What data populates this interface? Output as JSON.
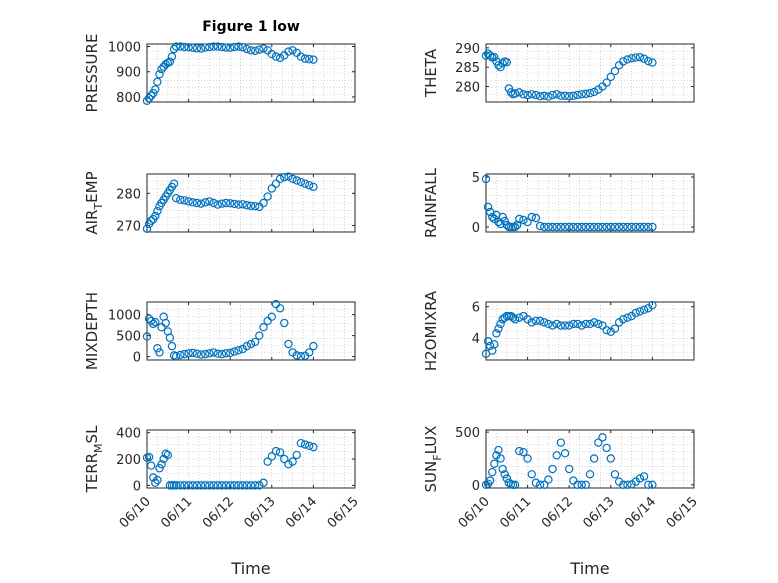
{
  "figure": {
    "title": "Figure 1 low"
  },
  "chart_data": [
    {
      "type": "scatter",
      "id": "pressure",
      "ylabel": "PRESSURE",
      "xlabel": "",
      "title": "Figure 1 low",
      "ylim": [
        780,
        1010
      ],
      "yticks": [
        "800",
        "900",
        "1000"
      ],
      "ytick_values": [
        800,
        900,
        1000
      ],
      "xlim": [
        0,
        5
      ],
      "xtick_values": [
        0,
        1,
        2,
        3,
        4,
        5
      ],
      "grid": true,
      "color": "#0072BD",
      "x": [
        0.0,
        0.05,
        0.1,
        0.15,
        0.2,
        0.25,
        0.3,
        0.35,
        0.4,
        0.45,
        0.5,
        0.55,
        0.6,
        0.65,
        0.7,
        0.8,
        0.9,
        1.0,
        1.1,
        1.2,
        1.3,
        1.4,
        1.5,
        1.6,
        1.7,
        1.8,
        1.9,
        2.0,
        2.1,
        2.2,
        2.3,
        2.4,
        2.5,
        2.6,
        2.7,
        2.8,
        2.9,
        3.0,
        3.1,
        3.2,
        3.3,
        3.4,
        3.5,
        3.6,
        3.7,
        3.8,
        3.9,
        4.0
      ],
      "y": [
        785,
        795,
        805,
        815,
        830,
        860,
        890,
        910,
        920,
        930,
        935,
        940,
        960,
        990,
        1000,
        1000,
        998,
        997,
        995,
        993,
        992,
        996,
        998,
        1000,
        1000,
        998,
        996,
        995,
        998,
        1000,
        997,
        990,
        985,
        983,
        988,
        992,
        985,
        970,
        960,
        955,
        965,
        980,
        985,
        975,
        960,
        952,
        950,
        948
      ]
    },
    {
      "type": "scatter",
      "id": "theta",
      "ylabel": "THETA",
      "xlabel": "",
      "ylim": [
        276,
        291
      ],
      "yticks": [
        "280",
        "285",
        "290"
      ],
      "ytick_values": [
        280,
        285,
        290
      ],
      "xlim": [
        0,
        5
      ],
      "xtick_values": [
        0,
        1,
        2,
        3,
        4,
        5
      ],
      "grid": true,
      "color": "#0072BD",
      "x": [
        0.0,
        0.05,
        0.1,
        0.15,
        0.2,
        0.25,
        0.3,
        0.35,
        0.4,
        0.45,
        0.5,
        0.55,
        0.6,
        0.65,
        0.7,
        0.8,
        0.9,
        1.0,
        1.1,
        1.2,
        1.3,
        1.4,
        1.5,
        1.6,
        1.7,
        1.8,
        1.9,
        2.0,
        2.1,
        2.2,
        2.3,
        2.4,
        2.5,
        2.6,
        2.7,
        2.8,
        2.9,
        3.0,
        3.1,
        3.2,
        3.3,
        3.4,
        3.5,
        3.6,
        3.7,
        3.8,
        3.9,
        4.0
      ],
      "y": [
        288,
        288.5,
        288,
        287.5,
        287.6,
        286.5,
        285.5,
        285,
        286,
        286.5,
        286.3,
        279.5,
        278.5,
        278,
        278.2,
        278.5,
        278,
        277.8,
        278,
        277.8,
        277.5,
        277.6,
        277.4,
        277.8,
        278,
        277.6,
        277.6,
        277.5,
        277.6,
        277.8,
        278,
        278.1,
        278.3,
        278.6,
        279.2,
        280,
        281,
        282.5,
        284,
        285.5,
        286.5,
        287,
        287.3,
        287.5,
        287.6,
        287.2,
        286.6,
        286.2
      ]
    },
    {
      "type": "scatter",
      "id": "air_temp",
      "ylabel": "AIR_TEMP",
      "ylabel_main": "AIR",
      "ylabel_sub": "T",
      "ylabel_rest": "EMP",
      "xlabel": "",
      "ylim": [
        268,
        286
      ],
      "yticks": [
        "270",
        "280"
      ],
      "ytick_values": [
        270,
        280
      ],
      "xlim": [
        0,
        5
      ],
      "xtick_values": [
        0,
        1,
        2,
        3,
        4,
        5
      ],
      "grid": true,
      "color": "#0072BD",
      "x": [
        0.0,
        0.05,
        0.1,
        0.15,
        0.2,
        0.25,
        0.3,
        0.35,
        0.4,
        0.45,
        0.5,
        0.55,
        0.6,
        0.65,
        0.7,
        0.8,
        0.9,
        1.0,
        1.1,
        1.2,
        1.3,
        1.4,
        1.5,
        1.6,
        1.7,
        1.8,
        1.9,
        2.0,
        2.1,
        2.2,
        2.3,
        2.4,
        2.5,
        2.6,
        2.7,
        2.8,
        2.9,
        3.0,
        3.1,
        3.2,
        3.3,
        3.4,
        3.5,
        3.6,
        3.7,
        3.8,
        3.9,
        4.0
      ],
      "y": [
        269,
        270.5,
        271.5,
        272,
        273,
        274.5,
        276,
        277,
        278,
        279,
        280,
        281,
        282,
        283,
        278.5,
        278,
        277.8,
        277.5,
        277.2,
        277,
        276.8,
        277.2,
        277.5,
        277,
        276.5,
        276.8,
        277,
        276.9,
        276.7,
        276.5,
        276.6,
        276.3,
        276.1,
        276,
        275.8,
        277,
        279,
        281.5,
        283,
        284.5,
        285,
        285.2,
        284.5,
        284,
        283.5,
        283,
        282.5,
        282
      ]
    },
    {
      "type": "scatter",
      "id": "rainfall",
      "ylabel": "RAINFALL",
      "xlabel": "",
      "ylim": [
        -0.5,
        5.3
      ],
      "yticks": [
        "0",
        "5"
      ],
      "ytick_values": [
        0,
        5
      ],
      "xlim": [
        0,
        5
      ],
      "xtick_values": [
        0,
        1,
        2,
        3,
        4,
        5
      ],
      "grid": true,
      "color": "#0072BD",
      "x": [
        0.0,
        0.05,
        0.1,
        0.15,
        0.2,
        0.25,
        0.3,
        0.35,
        0.4,
        0.45,
        0.5,
        0.55,
        0.6,
        0.65,
        0.7,
        0.75,
        0.8,
        0.9,
        1.0,
        1.1,
        1.2,
        1.3,
        1.4,
        1.5,
        1.6,
        1.7,
        1.8,
        1.9,
        2.0,
        2.1,
        2.2,
        2.3,
        2.4,
        2.5,
        2.6,
        2.7,
        2.8,
        2.9,
        3.0,
        3.1,
        3.2,
        3.3,
        3.4,
        3.5,
        3.6,
        3.7,
        3.8,
        3.9,
        4.0
      ],
      "y": [
        4.8,
        2,
        1.5,
        1,
        0.8,
        1.2,
        0.5,
        0.3,
        1,
        0.6,
        0.2,
        0,
        0,
        0,
        0,
        0.2,
        0.8,
        0.7,
        0.5,
        1,
        0.9,
        0.1,
        0,
        0,
        0,
        0,
        0,
        0,
        0,
        0,
        0,
        0,
        0,
        0,
        0,
        0,
        0,
        0,
        0,
        0,
        0,
        0,
        0,
        0,
        0,
        0,
        0,
        0,
        0
      ]
    },
    {
      "type": "scatter",
      "id": "mixdepth",
      "ylabel": "MIXDEPTH",
      "xlabel": "",
      "ylim": [
        -80,
        1300
      ],
      "yticks": [
        "0",
        "500",
        "1000"
      ],
      "ytick_values": [
        0,
        500,
        1000
      ],
      "xlim": [
        0,
        5
      ],
      "xtick_values": [
        0,
        1,
        2,
        3,
        4,
        5
      ],
      "grid": true,
      "color": "#0072BD",
      "x": [
        0.0,
        0.05,
        0.1,
        0.15,
        0.2,
        0.25,
        0.3,
        0.35,
        0.4,
        0.45,
        0.5,
        0.55,
        0.6,
        0.65,
        0.7,
        0.8,
        0.9,
        1.0,
        1.1,
        1.2,
        1.3,
        1.4,
        1.5,
        1.6,
        1.7,
        1.8,
        1.9,
        2.0,
        2.1,
        2.2,
        2.3,
        2.4,
        2.5,
        2.6,
        2.7,
        2.8,
        2.9,
        3.0,
        3.1,
        3.2,
        3.3,
        3.4,
        3.5,
        3.6,
        3.7,
        3.8,
        3.9,
        4.0
      ],
      "y": [
        480,
        900,
        850,
        780,
        820,
        200,
        100,
        700,
        950,
        800,
        600,
        450,
        250,
        30,
        10,
        40,
        60,
        80,
        90,
        70,
        50,
        60,
        80,
        100,
        70,
        60,
        80,
        90,
        120,
        150,
        180,
        250,
        300,
        350,
        500,
        700,
        850,
        950,
        1250,
        1150,
        800,
        300,
        100,
        30,
        10,
        20,
        100,
        250
      ]
    },
    {
      "type": "scatter",
      "id": "h2omixra",
      "ylabel": "H2OMIXRA",
      "xlabel": "",
      "ylim": [
        2.6,
        6.3
      ],
      "yticks": [
        "4",
        "6"
      ],
      "ytick_values": [
        4,
        6
      ],
      "xlim": [
        0,
        5
      ],
      "xtick_values": [
        0,
        1,
        2,
        3,
        4,
        5
      ],
      "grid": true,
      "color": "#0072BD",
      "x": [
        0.0,
        0.05,
        0.1,
        0.15,
        0.2,
        0.25,
        0.3,
        0.35,
        0.4,
        0.45,
        0.5,
        0.55,
        0.6,
        0.65,
        0.7,
        0.8,
        0.9,
        1.0,
        1.1,
        1.2,
        1.3,
        1.4,
        1.5,
        1.6,
        1.7,
        1.8,
        1.9,
        2.0,
        2.1,
        2.2,
        2.3,
        2.4,
        2.5,
        2.6,
        2.7,
        2.8,
        2.9,
        3.0,
        3.1,
        3.2,
        3.3,
        3.4,
        3.5,
        3.6,
        3.7,
        3.8,
        3.9,
        4.0
      ],
      "y": [
        3.0,
        3.8,
        3.5,
        3.2,
        3.6,
        4.3,
        4.6,
        4.9,
        5.2,
        5.3,
        5.4,
        5.4,
        5.4,
        5.3,
        5.2,
        5.3,
        5.4,
        5.2,
        5.0,
        5.1,
        5.1,
        5.0,
        4.9,
        4.8,
        4.9,
        4.8,
        4.8,
        4.8,
        4.9,
        4.9,
        4.8,
        4.9,
        4.9,
        5.0,
        4.9,
        4.8,
        4.5,
        4.4,
        4.6,
        5.0,
        5.2,
        5.3,
        5.4,
        5.6,
        5.7,
        5.8,
        5.9,
        6.1
      ]
    },
    {
      "type": "scatter",
      "id": "terr_msl",
      "ylabel": "TERR_MSL",
      "ylabel_main": "TERR",
      "ylabel_sub": "M",
      "ylabel_rest": "SL",
      "xlabel": "Time",
      "ylim": [
        -20,
        420
      ],
      "yticks": [
        "0",
        "200",
        "400"
      ],
      "ytick_values": [
        0,
        200,
        400
      ],
      "xlim": [
        0,
        5
      ],
      "xtick_values": [
        0,
        1,
        2,
        3,
        4,
        5
      ],
      "xticks": [
        "06/10",
        "06/11",
        "06/12",
        "06/13",
        "06/14",
        "06/15"
      ],
      "grid": true,
      "color": "#0072BD",
      "x": [
        0.0,
        0.05,
        0.1,
        0.15,
        0.2,
        0.25,
        0.3,
        0.35,
        0.4,
        0.45,
        0.5,
        0.55,
        0.6,
        0.65,
        0.7,
        0.8,
        0.9,
        1.0,
        1.1,
        1.2,
        1.3,
        1.4,
        1.5,
        1.6,
        1.7,
        1.8,
        1.9,
        2.0,
        2.1,
        2.2,
        2.3,
        2.4,
        2.5,
        2.6,
        2.7,
        2.8,
        2.9,
        3.0,
        3.1,
        3.2,
        3.3,
        3.4,
        3.5,
        3.6,
        3.7,
        3.8,
        3.9,
        4.0
      ],
      "y": [
        210,
        215,
        150,
        60,
        20,
        40,
        130,
        160,
        200,
        240,
        230,
        0,
        0,
        0,
        0,
        0,
        0,
        0,
        0,
        0,
        0,
        0,
        0,
        0,
        0,
        0,
        0,
        0,
        0,
        0,
        0,
        0,
        0,
        0,
        0,
        20,
        180,
        220,
        260,
        250,
        200,
        160,
        180,
        230,
        320,
        310,
        300,
        290
      ]
    },
    {
      "type": "scatter",
      "id": "sun_flux",
      "ylabel": "SUN_FLUX",
      "ylabel_main": "SUN",
      "ylabel_sub": "F",
      "ylabel_rest": "LUX",
      "xlabel": "Time",
      "ylim": [
        -30,
        520
      ],
      "yticks": [
        "0",
        "500"
      ],
      "ytick_values": [
        0,
        500
      ],
      "xlim": [
        0,
        5
      ],
      "xtick_values": [
        0,
        1,
        2,
        3,
        4,
        5
      ],
      "xticks": [
        "06/10",
        "06/11",
        "06/12",
        "06/13",
        "06/14",
        "06/15"
      ],
      "grid": true,
      "color": "#0072BD",
      "x": [
        0.0,
        0.05,
        0.1,
        0.15,
        0.2,
        0.25,
        0.3,
        0.35,
        0.4,
        0.45,
        0.5,
        0.55,
        0.6,
        0.65,
        0.7,
        0.8,
        0.9,
        1.0,
        1.1,
        1.2,
        1.3,
        1.4,
        1.5,
        1.6,
        1.7,
        1.8,
        1.9,
        2.0,
        2.1,
        2.2,
        2.3,
        2.4,
        2.5,
        2.6,
        2.7,
        2.8,
        2.9,
        3.0,
        3.1,
        3.2,
        3.3,
        3.4,
        3.5,
        3.6,
        3.7,
        3.8,
        3.9,
        4.0
      ],
      "y": [
        0,
        10,
        40,
        120,
        200,
        280,
        330,
        250,
        150,
        100,
        60,
        20,
        5,
        0,
        0,
        320,
        310,
        250,
        100,
        20,
        0,
        0,
        50,
        150,
        280,
        400,
        300,
        150,
        40,
        0,
        0,
        0,
        100,
        250,
        400,
        450,
        350,
        250,
        100,
        30,
        0,
        0,
        5,
        30,
        60,
        80,
        0,
        0
      ]
    }
  ]
}
